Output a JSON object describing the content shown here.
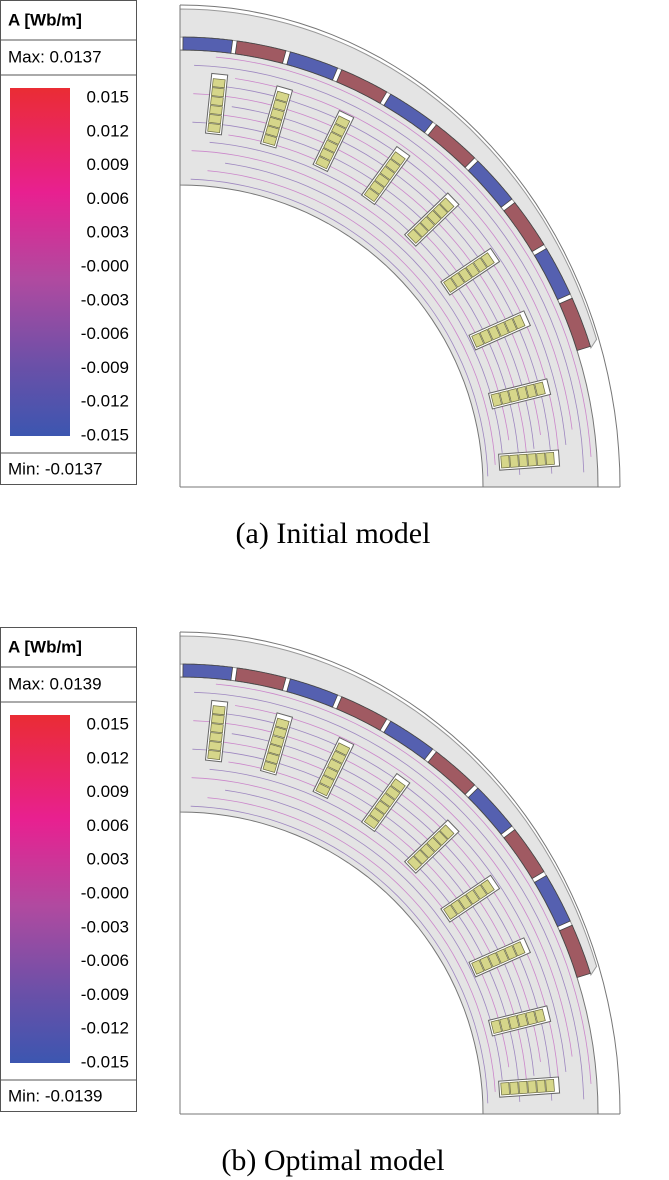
{
  "panels": [
    {
      "legend": {
        "title": "A [Wb/m]",
        "max": "Max: 0.0137",
        "ticks": [
          "0.015",
          "0.012",
          "0.009",
          "0.006",
          "0.003",
          "-0.000",
          "-0.003",
          "-0.006",
          "-0.009",
          "-0.012",
          "-0.015"
        ],
        "min": "Min: -0.0137"
      },
      "caption": "(a) Initial model"
    },
    {
      "legend": {
        "title": "A [Wb/m]",
        "max": "Max: 0.0139",
        "ticks": [
          "0.015",
          "0.012",
          "0.009",
          "0.006",
          "0.003",
          "-0.000",
          "-0.003",
          "-0.006",
          "-0.009",
          "-0.012",
          "-0.015"
        ],
        "min": "Min: -0.0139"
      },
      "caption": "(b) Optimal model"
    }
  ]
}
